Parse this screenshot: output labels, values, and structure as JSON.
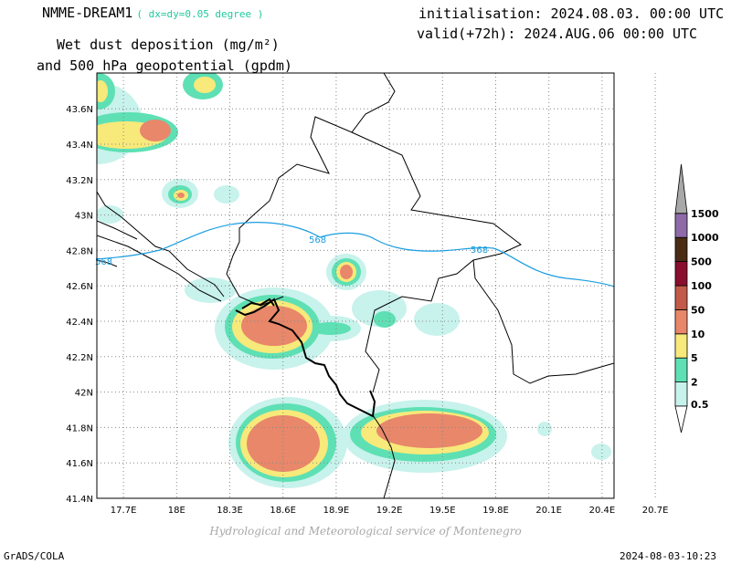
{
  "header": {
    "model": "NMME-DREAM1",
    "resolution": "( dx=dy=0.05 degree )",
    "title_line1": "Wet dust deposition (mg/m²)",
    "title_line2": "and 500 hPa geopotential (gpdm)",
    "initialisation": "initialisation: 2024.08.03. 00:00 UTC",
    "valid": "valid(+72h): 2024.AUG.06 00:00 UTC"
  },
  "footer": {
    "credit": "Hydrological and Meteorological service of Montenegro",
    "software": "GrADS/COLA",
    "timestamp": "2024-08-03-10:23"
  },
  "map": {
    "lon_ticks": [
      {
        "label": "17.7E",
        "value": 17.7
      },
      {
        "label": "18E",
        "value": 18.0
      },
      {
        "label": "18.3E",
        "value": 18.3
      },
      {
        "label": "18.6E",
        "value": 18.6
      },
      {
        "label": "18.9E",
        "value": 18.9
      },
      {
        "label": "19.2E",
        "value": 19.2
      },
      {
        "label": "19.5E",
        "value": 19.5
      },
      {
        "label": "19.8E",
        "value": 19.8
      },
      {
        "label": "20.1E",
        "value": 20.1
      },
      {
        "label": "20.4E",
        "value": 20.4
      },
      {
        "label": "20.7E",
        "value": 20.7
      }
    ],
    "lat_ticks": [
      {
        "label": "43.6N",
        "value": 43.6
      },
      {
        "label": "43.4N",
        "value": 43.4
      },
      {
        "label": "43.2N",
        "value": 43.2
      },
      {
        "label": "43N",
        "value": 43.0
      },
      {
        "label": "42.8N",
        "value": 42.8
      },
      {
        "label": "42.6N",
        "value": 42.6
      },
      {
        "label": "42.4N",
        "value": 42.4
      },
      {
        "label": "42.2N",
        "value": 42.2
      },
      {
        "label": "42N",
        "value": 42.0
      },
      {
        "label": "41.8N",
        "value": 41.8
      },
      {
        "label": "41.6N",
        "value": 41.6
      },
      {
        "label": "41.4N",
        "value": 41.4
      }
    ],
    "contour": {
      "label": "568",
      "color": "#1a9de0"
    },
    "colorbar": [
      {
        "label": "0.5",
        "color": "#c8f2ec"
      },
      {
        "label": "2",
        "color": "#5ee0b4"
      },
      {
        "label": "5",
        "color": "#f7e97a"
      },
      {
        "label": "10",
        "color": "#e8876a"
      },
      {
        "label": "50",
        "color": "#c25a49"
      },
      {
        "label": "100",
        "color": "#8a0e2e"
      },
      {
        "label": "500",
        "color": "#4a2c14"
      },
      {
        "label": "1000",
        "color": "#8f6aa8"
      },
      {
        "label": "1500",
        "color": "#a8a8a8"
      }
    ]
  }
}
